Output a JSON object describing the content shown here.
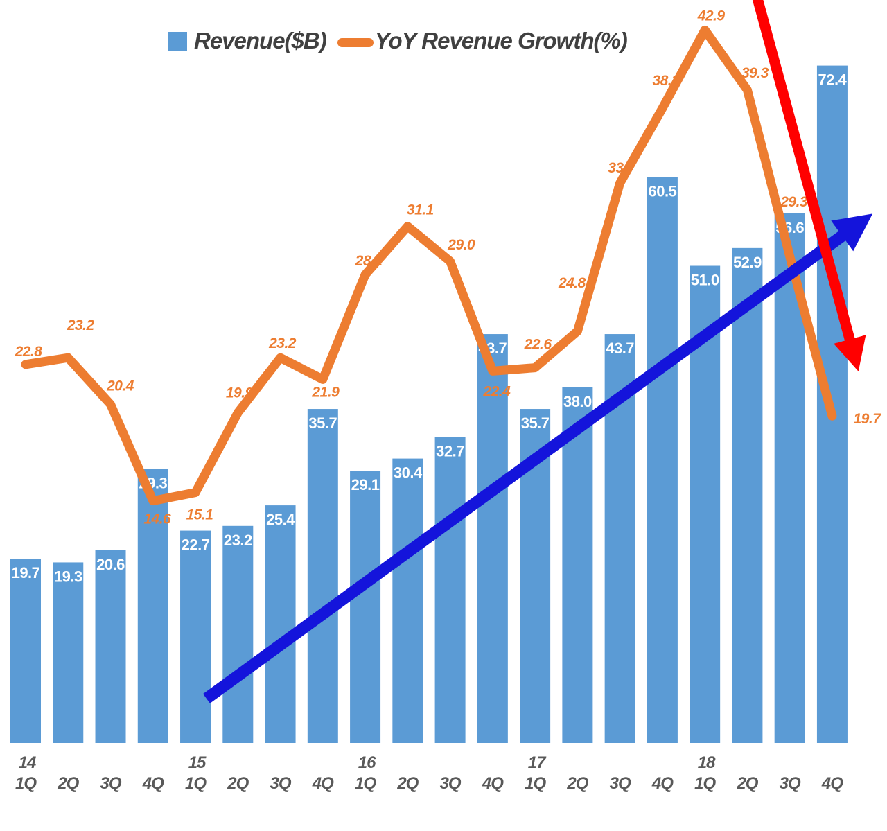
{
  "legend": {
    "revenue": "Revenue($B)",
    "growth": "YoY Revenue Growth(%)"
  },
  "colors": {
    "bar": "#5B9BD5",
    "line": "#ED7D31",
    "bar_label": "#FFFFFF",
    "growth_label": "#ED7D31",
    "axis_label": "#595959",
    "legend_text": "#404040",
    "up_arrow": "#1414DB",
    "down_arrow": "#FF0000"
  },
  "chart_data": {
    "type": "bar",
    "subtype": "bar-line-combo",
    "title": "",
    "xlabel": "",
    "ylabel": "",
    "gridlines": false,
    "y_axis_hidden": true,
    "legend_position": "top-center",
    "categories": [
      "1Q",
      "2Q",
      "3Q",
      "4Q",
      "1Q",
      "2Q",
      "3Q",
      "4Q",
      "1Q",
      "2Q",
      "3Q",
      "4Q",
      "1Q",
      "2Q",
      "3Q",
      "4Q",
      "1Q",
      "2Q",
      "3Q",
      "4Q"
    ],
    "year_row": {
      "0": "14",
      "4": "15",
      "8": "16",
      "12": "17",
      "16": "18"
    },
    "series": [
      {
        "name": "Revenue($B)",
        "type": "bar",
        "values": [
          19.7,
          19.3,
          20.6,
          29.3,
          22.7,
          23.2,
          25.4,
          35.7,
          29.1,
          30.4,
          32.7,
          43.7,
          35.7,
          38.0,
          43.7,
          60.5,
          51.0,
          52.9,
          56.6,
          72.4
        ],
        "labels": [
          "19.7",
          "19.3",
          "20.6",
          "29.3",
          "22.7",
          "23.2",
          "25.4",
          "35.7",
          "29.1",
          "30.4",
          "32.7",
          "43.7",
          "35.7",
          "38.0",
          "43.7",
          "60.5",
          "51.0",
          "52.9",
          "56.6",
          "72.4"
        ]
      },
      {
        "name": "YoY Revenue Growth(%)",
        "type": "line",
        "values": [
          22.8,
          23.2,
          20.4,
          14.6,
          15.1,
          19.9,
          23.2,
          21.9,
          28.2,
          31.1,
          29.0,
          22.4,
          22.6,
          24.8,
          33.7,
          38.2,
          42.9,
          39.3,
          29.3,
          19.7
        ],
        "labels": [
          "22.8",
          "23.2",
          "20.4",
          "14.6",
          "15.1",
          "19.9",
          "23.2",
          "21.9",
          "28.2",
          "31.1",
          "29.0",
          "22.4",
          "22.6",
          "24.8",
          "33.7",
          "38.2",
          "42.9",
          "39.3",
          "29.3",
          "19.7"
        ],
        "label_offsets": [
          [
            4,
            -20
          ],
          [
            18,
            -48
          ],
          [
            14,
            -28
          ],
          [
            6,
            25
          ],
          [
            6,
            31
          ],
          [
            2,
            -30
          ],
          [
            3,
            -22
          ],
          [
            4,
            17
          ],
          [
            5,
            -21
          ],
          [
            18,
            -25
          ],
          [
            16,
            -25
          ],
          [
            6,
            28
          ],
          [
            4,
            -35
          ],
          [
            -8,
            -71
          ],
          [
            2,
            -23
          ],
          [
            5,
            -41
          ],
          [
            9,
            -22
          ],
          [
            11,
            -26
          ],
          [
            6,
            -80
          ],
          [
            50,
            3
          ]
        ]
      }
    ],
    "annotations": [
      {
        "name": "uptrend-arrow",
        "description": "straight blue arrow rising from lower-left to upper-right across the bars"
      },
      {
        "name": "downtrend-arrow",
        "description": "straight red arrow falling steeply near the right edge over the last quarters"
      }
    ]
  }
}
